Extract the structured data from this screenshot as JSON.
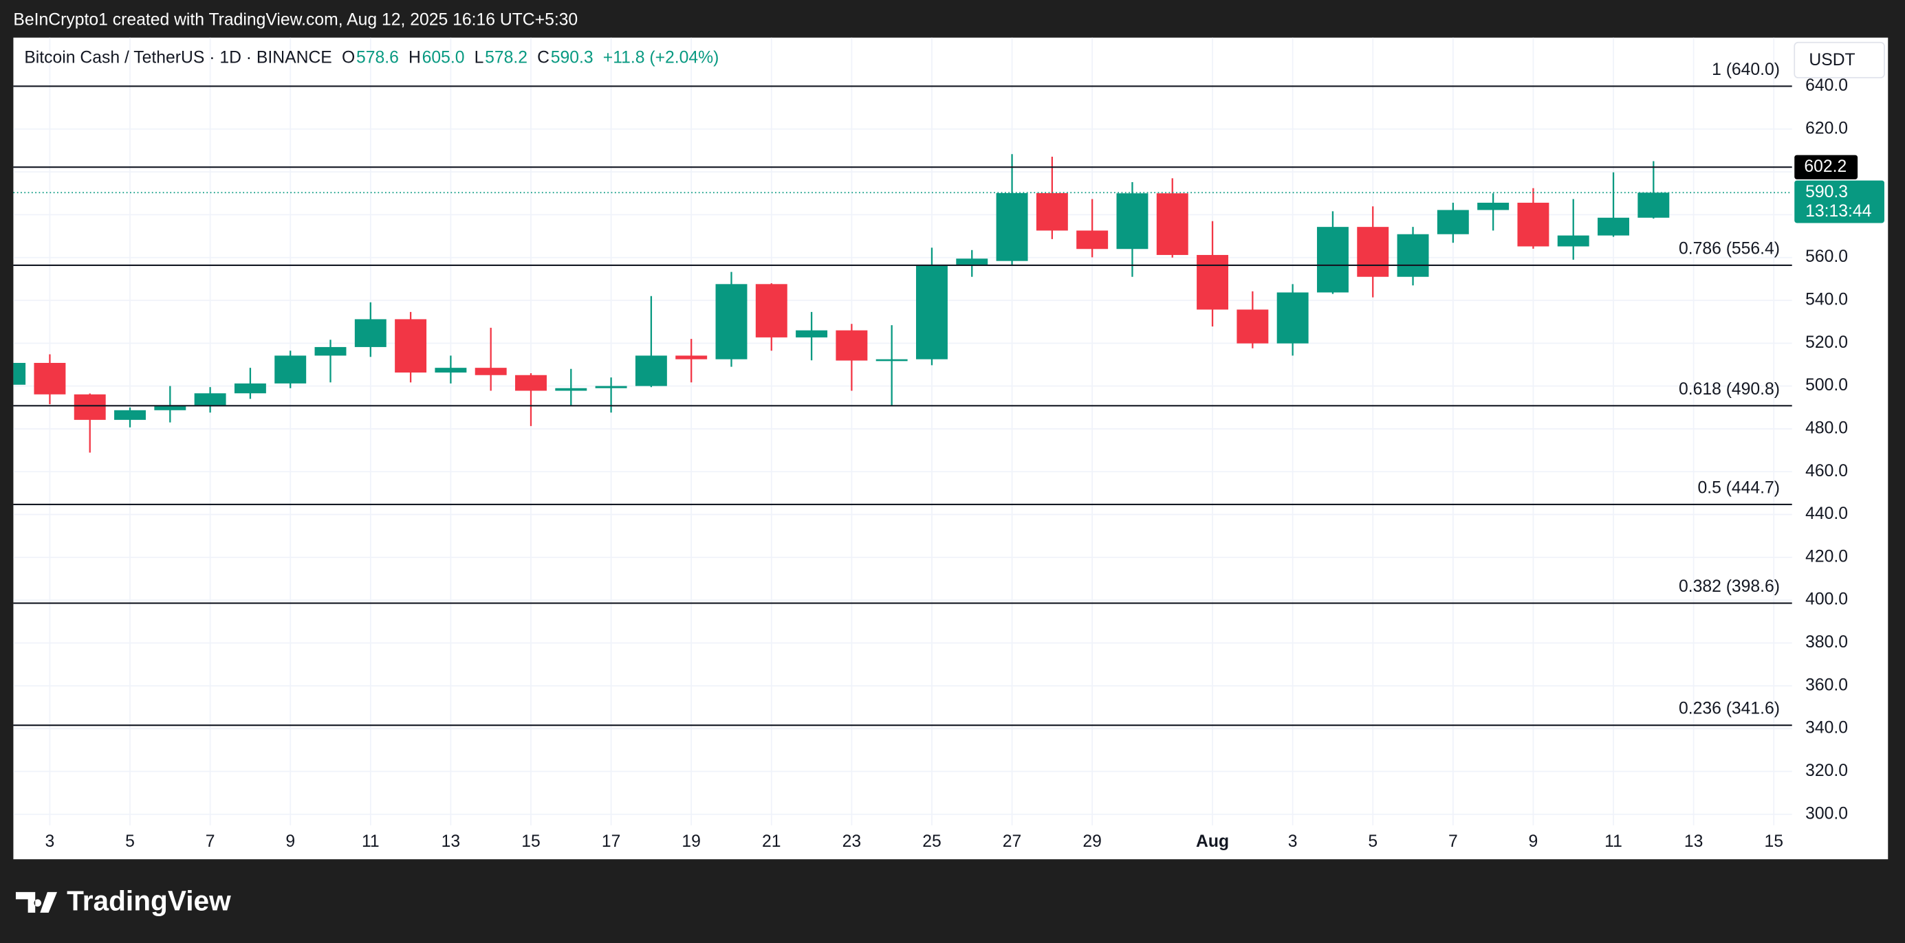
{
  "top_bar": "BeInCrypto1 created with TradingView.com, Aug 12, 2025 16:16 UTC+5:30",
  "chart_data": {
    "type": "candlestick",
    "title": "Bitcoin Cash / TetherUS · 1D · BINANCE",
    "legend_items": [
      [
        "O",
        "578.6"
      ],
      [
        "H",
        "605.0"
      ],
      [
        "L",
        "578.2"
      ],
      [
        "C",
        "590.3"
      ]
    ],
    "change": "+11.8 (+2.04%)",
    "currency": "USDT",
    "categories": [
      null,
      "3",
      null,
      "5",
      null,
      "7",
      null,
      "9",
      null,
      "11",
      null,
      "13",
      null,
      "15",
      null,
      "17",
      null,
      "19",
      null,
      "21",
      null,
      "23",
      null,
      "25",
      null,
      "27",
      null,
      "29",
      null,
      null,
      "Aug",
      null,
      "3",
      null,
      "5",
      null,
      "7",
      null,
      "9",
      null,
      "11",
      null,
      "13",
      null,
      "15"
    ],
    "open": [
      500.6,
      510.8,
      496.1,
      484.2,
      488.7,
      491,
      496.6,
      501.2,
      514.2,
      518.2,
      531.2,
      506.3,
      508.5,
      505.1,
      497.8,
      499,
      500,
      514.2,
      512.5,
      547.6,
      522.7,
      526,
      511.9,
      512.5,
      556.7,
      558.4,
      590.1,
      572.6,
      564,
      590,
      561.2,
      535.7,
      519.9,
      543.7,
      574.3,
      551,
      570.9,
      582.2,
      585.6,
      565.2,
      570.3,
      578.6,
      null,
      null,
      null
    ],
    "high": [
      512,
      514.8,
      496.5,
      490,
      500,
      499.5,
      508.5,
      516.5,
      521.6,
      539.1,
      534.6,
      514.2,
      527.2,
      506,
      508,
      504,
      542,
      522,
      553.3,
      548,
      534.6,
      529,
      528.4,
      564.6,
      563.5,
      608.3,
      607.1,
      587.3,
      595.2,
      597,
      577,
      544.2,
      547.6,
      581.6,
      583.9,
      574.3,
      585.6,
      590,
      592.4,
      587.3,
      599.8,
      605.0,
      null,
      null,
      null
    ],
    "low": [
      498,
      491.5,
      468.9,
      480.7,
      483,
      487.6,
      494,
      499,
      501.7,
      513.6,
      501.7,
      501.2,
      497.8,
      481.3,
      491,
      487.6,
      499.5,
      501.7,
      509,
      516.5,
      512,
      497.8,
      491,
      509.7,
      551,
      556.1,
      568.6,
      560.1,
      551,
      560,
      527.8,
      517.6,
      514.2,
      543,
      541.4,
      547,
      566.9,
      572.6,
      564.1,
      559,
      569.7,
      578.2,
      null,
      null,
      null
    ],
    "close": [
      510.8,
      496.1,
      484.2,
      488.7,
      491,
      496.6,
      501.2,
      514.2,
      518.2,
      531.2,
      506.3,
      508.5,
      505.1,
      497.8,
      499,
      500,
      514.2,
      512.5,
      547.6,
      522.7,
      526,
      511.9,
      512.5,
      556.7,
      559.5,
      590.1,
      572.6,
      564,
      590,
      561.2,
      535.7,
      519.9,
      543.7,
      574.3,
      551,
      570.9,
      582.2,
      585.6,
      565.2,
      570.3,
      578.6,
      590.3,
      null,
      null,
      null
    ],
    "up_color": "#089981",
    "down_color": "#f23645",
    "ylim": [
      279,
      662.7
    ],
    "yticks": [
      {
        "value": 300,
        "label": "300.0"
      },
      {
        "value": 320,
        "label": "320.0"
      },
      {
        "value": 340,
        "label": "340.0"
      },
      {
        "value": 360,
        "label": "360.0"
      },
      {
        "value": 380,
        "label": "380.0"
      },
      {
        "value": 400,
        "label": "400.0"
      },
      {
        "value": 420,
        "label": "420.0"
      },
      {
        "value": 440,
        "label": "440.0"
      },
      {
        "value": 460,
        "label": "460.0"
      },
      {
        "value": 480,
        "label": "480.0"
      },
      {
        "value": 500,
        "label": "500.0"
      },
      {
        "value": 520,
        "label": "520.0"
      },
      {
        "value": 540,
        "label": "540.0"
      },
      {
        "value": 560,
        "label": "560.0"
      },
      {
        "value": 580,
        "label": "580.0"
      },
      {
        "value": 600,
        "label": "600.0"
      },
      {
        "value": 620,
        "label": "620.0"
      },
      {
        "value": 640,
        "label": "640.0"
      }
    ],
    "grid": true,
    "fib_levels": [
      {
        "value": 640,
        "label": "1 (640.0)"
      },
      {
        "value": 556.4,
        "label": "0.786 (556.4)"
      },
      {
        "value": 490.8,
        "label": "0.618 (490.8)"
      },
      {
        "value": 444.7,
        "label": "0.5 (444.7)"
      },
      {
        "value": 398.6,
        "label": "0.382 (398.6)"
      },
      {
        "value": 341.6,
        "label": "0.236 (341.6)"
      }
    ],
    "price_line": {
      "value": 602.2,
      "label": "602.2"
    },
    "last_price": {
      "value": 590.3,
      "label": "590.3",
      "countdown": "13:13:44"
    }
  },
  "footer": "TradingView"
}
